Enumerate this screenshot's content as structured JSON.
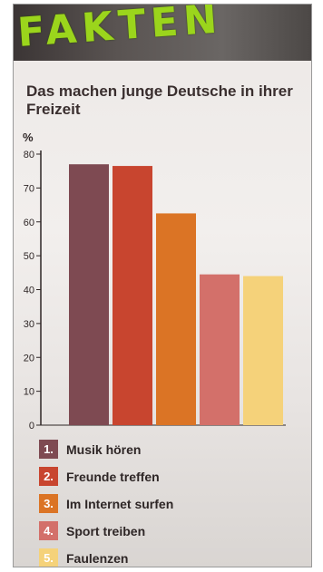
{
  "banner": {
    "title": "FAKTEN"
  },
  "subtitle": "Das machen junge Deutsche in ihrer Freizeit",
  "chart_data": {
    "type": "bar",
    "categories": [
      "Musik hören",
      "Freunde treffen",
      "Im Internet surfen",
      "Sport treiben",
      "Faulenzen"
    ],
    "ranks": [
      "1.",
      "2.",
      "3.",
      "4.",
      "5."
    ],
    "values": [
      77,
      76.5,
      62.5,
      44.5,
      44
    ],
    "colors": [
      "#7e4a52",
      "#c8452f",
      "#db7425",
      "#d3706a",
      "#f5d27a"
    ],
    "title": "",
    "xlabel": "",
    "ylabel": "%",
    "ylim": [
      0,
      80
    ],
    "yticks": [
      0,
      10,
      20,
      30,
      40,
      50,
      60,
      70,
      80
    ],
    "grid": false,
    "legend": "bottom"
  }
}
